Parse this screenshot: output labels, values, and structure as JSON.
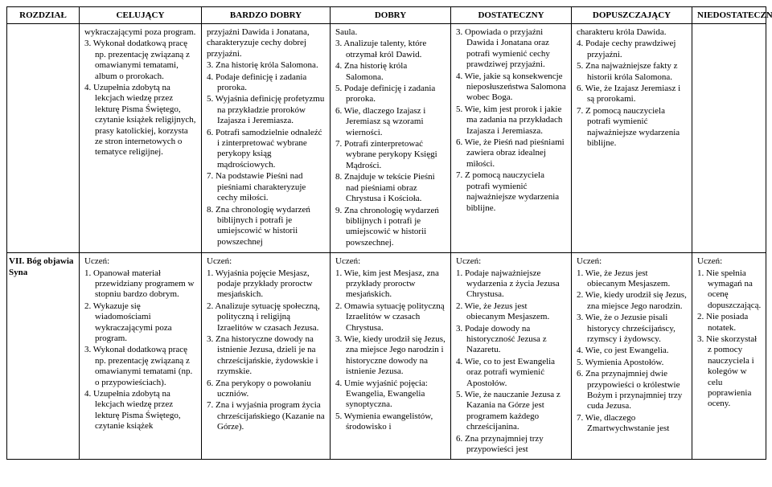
{
  "headers": {
    "c0": "ROZDZIAŁ",
    "c1": "CELUJĄCY",
    "c2": "BARDZO DOBRY",
    "c3": "DOBRY",
    "c4": "DOSTATECZNY",
    "c5": "DOPUSZCZAJĄCY",
    "c6": "NIEDOSTATECZNY"
  },
  "row0": {
    "label": "",
    "cel": {
      "pre": "wykraczającymi poza program.",
      "items": [
        "3. Wykonał dodatkową pracę np. prezentację związaną z omawianymi tematami, album o prorokach.",
        "4. Uzupełnia zdobytą na lekcjach wiedzę przez lekturę Pisma Świętego, czytanie książek religijnych, prasy katolickiej, korzysta ze stron internetowych o tematyce religijnej."
      ]
    },
    "bd": {
      "pre": "przyjaźni Dawida i Jonatana, charakteryzuje cechy dobrej przyjaźni.",
      "items": [
        "3. Zna historię króla Salomona.",
        "4. Podaje definicję i zadania proroka.",
        "5. Wyjaśnia definicję profetyzmu na przykładzie proroków Izajasza i Jeremiasza.",
        "6. Potrafi samodzielnie odnaleźć i zinterpretować wybrane perykopy ksiąg mądrościowych.",
        "7. Na podstawie Pieśni nad pieśniami charakteryzuje cechy miłości.",
        "8. Zna chronologię wydarzeń biblijnych i potrafi je umiejscowić w historii powszechnej"
      ]
    },
    "dobry": {
      "pre": "Saula.",
      "items": [
        "3. Analizuje talenty, które otrzymał król Dawid.",
        "4. Zna historię króla Salomona.",
        "5. Podaje definicję i zadania proroka.",
        "6. Wie, dlaczego Izajasz i Jeremiasz są wzorami wierności.",
        "7. Potrafi zinterpretować wybrane perykopy Księgi Mądrości.",
        "8. Znajduje w tekście Pieśni nad pieśniami obraz Chrystusa i Kościoła.",
        "9. Zna chronologię wydarzeń biblijnych i potrafi je umiejscowić w historii powszechnej."
      ]
    },
    "dost": {
      "items": [
        "3. Opowiada o przyjaźni Dawida i Jonatana oraz potrafi wymienić cechy prawdziwej przyjaźni.",
        "4. Wie, jakie są konsekwencje nieposłuszeństwa Salomona wobec Boga.",
        "5. Wie, kim jest prorok i jakie ma zadania na przykładach Izajasza i Jeremiasza.",
        "6. Wie, że Pieśń nad pieśniami zawiera obraz idealnej miłości.",
        "7. Z pomocą nauczyciela potrafi wymienić najważniejsze wydarzenia biblijne."
      ]
    },
    "dop": {
      "pre": "charakteru króla Dawida.",
      "items": [
        "4. Podaje cechy prawdziwej przyjaźni.",
        "5. Zna najważniejsze fakty z historii króla Salomona.",
        "6. Wie, że Izajasz Jeremiasz i są prorokami.",
        "7. Z pomocą nauczyciela potrafi wymienić najważniejsze wydarzenia biblijne."
      ]
    },
    "nied": {
      "items": []
    }
  },
  "row1": {
    "label": "VII.  Bóg objawia Syna",
    "cel": {
      "lead": "Uczeń:",
      "items": [
        "1. Opanował materiał przewidziany programem w stopniu bardzo dobrym.",
        "2. Wykazuje się wiadomościami wykraczającymi poza program.",
        "3. Wykonał dodatkową pracę np. prezentację związaną z omawianymi tematami (np. o przypowieściach).",
        "4. Uzupełnia zdobytą na lekcjach wiedzę przez lekturę Pisma Świętego, czytanie książek"
      ]
    },
    "bd": {
      "lead": "Uczeń:",
      "items": [
        "1. Wyjaśnia pojęcie Mesjasz, podaje przykłady proroctw mesjańskich.",
        "2. Analizuje sytuację społeczną, polityczną i religijną Izraelitów w czasach Jezusa.",
        "3. Zna historyczne dowody na istnienie Jezusa, dzieli je na chrześcijańskie, żydowskie i rzymskie.",
        "6. Zna perykopy o powołaniu uczniów.",
        "7. Zna i wyjaśnia  program życia chrześcijańskiego (Kazanie na Górze)."
      ]
    },
    "dobry": {
      "lead": "Uczeń:",
      "items": [
        "1. Wie, kim jest Mesjasz, zna przykłady proroctw mesjańskich.",
        "2. Omawia sytuację polityczną Izraelitów w czasach Chrystusa.",
        "3. Wie, kiedy urodził się Jezus, zna miejsce Jego narodzin i  historyczne dowody na istnienie Jezusa.",
        "4. Umie wyjaśnić pojęcia: Ewangelia, Ewangelia synoptyczna.",
        "5. Wymienia ewangelistów, środowisko i"
      ]
    },
    "dost": {
      "lead": "Uczeń:",
      "items": [
        "1. Podaje najważniejsze wydarzenia z życia Jezusa Chrystusa.",
        "2. Wie, że Jezus jest obiecanym Mesjaszem.",
        "3. Podaje dowody na historyczność Jezusa z Nazaretu.",
        "4. Wie, co to jest Ewangelia oraz potrafi wymienić Apostołów.",
        "5. Wie, że nauczanie Jezusa z Kazania na Górze jest programem każdego chrześcijanina.",
        "6. Zna przynajmniej trzy przypowieści jest"
      ]
    },
    "dop": {
      "lead": "Uczeń:",
      "items": [
        "1. Wie, że Jezus jest obiecanym Mesjaszem.",
        "2. Wie, kiedy urodził się Jezus, zna miejsce Jego narodzin.",
        "3. Wie, że o Jezusie pisali historycy chrześcijańscy, rzymscy i żydowscy.",
        "4. Wie, co jest Ewangelia.",
        "5. Wymienia Apostołów.",
        "6. Zna przynajmniej dwie przypowieści o królestwie Bożym i przynajmniej trzy cuda Jezusa.",
        "7. Wie, dlaczego Zmartwychwstanie jest"
      ]
    },
    "nied": {
      "lead": "Uczeń:",
      "items": [
        "1. Nie spełnia wymagań na ocenę dopuszczającą.",
        "2. Nie posiada notatek.",
        "3. Nie skorzystał z pomocy nauczyciela i kolegów w celu poprawienia oceny."
      ]
    }
  }
}
